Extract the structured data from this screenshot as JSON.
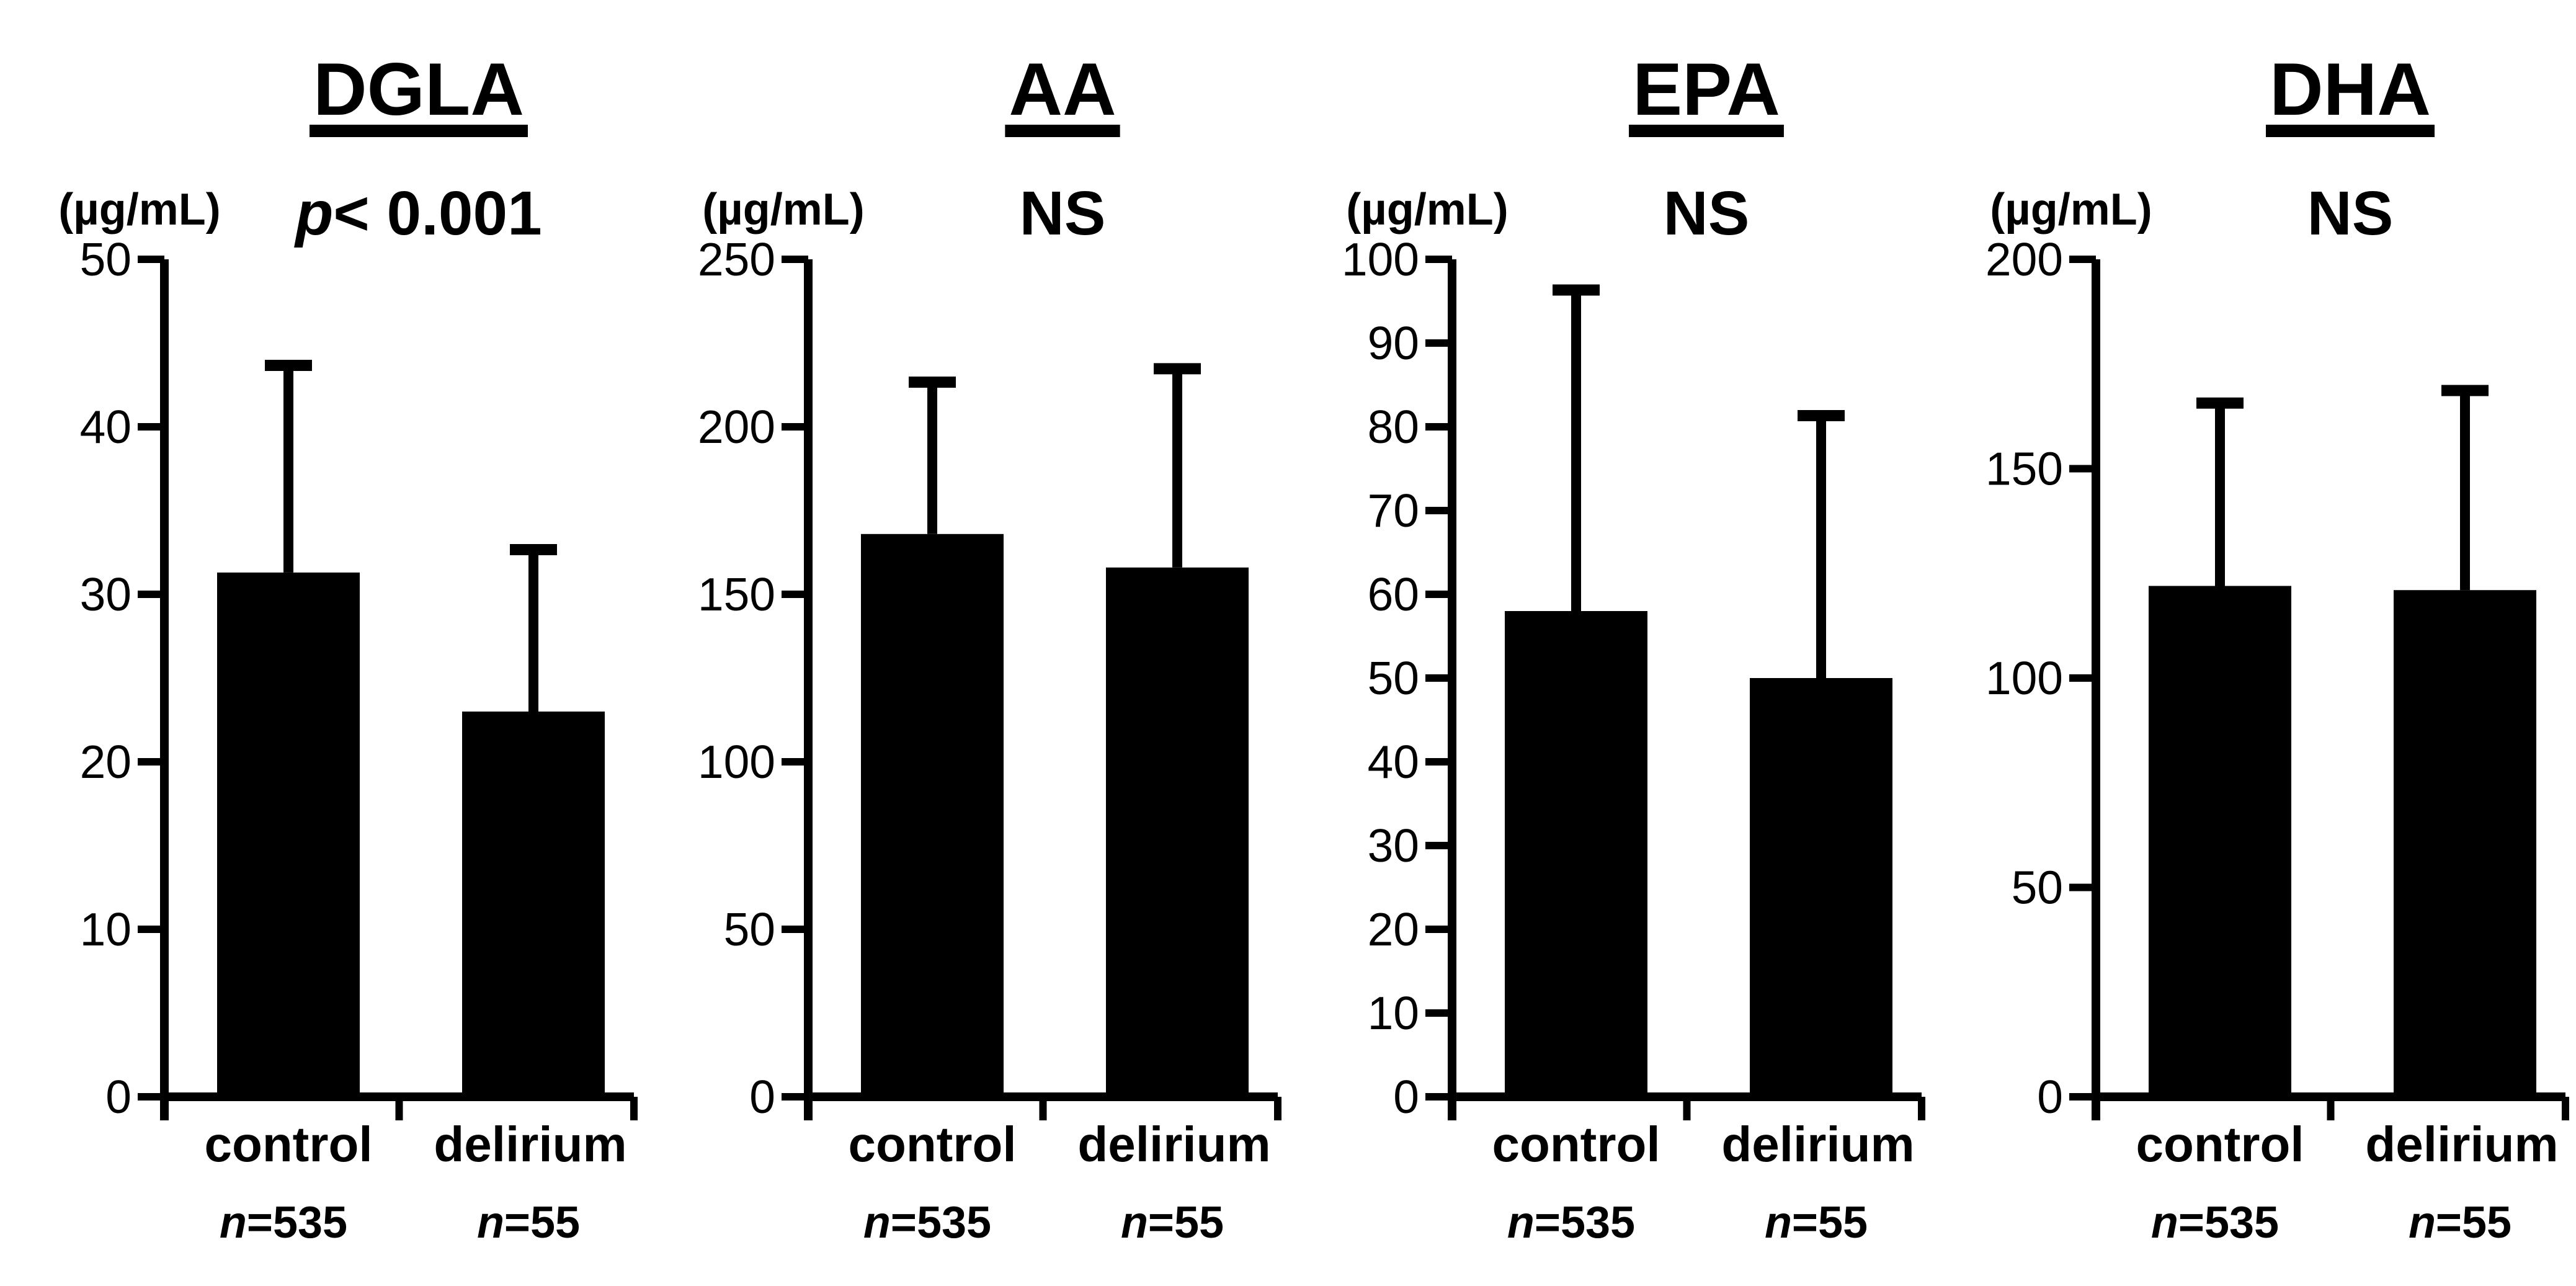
{
  "figure": {
    "background": "#ffffff",
    "ink": "#000000"
  },
  "chart_data": [
    {
      "type": "bar",
      "title": "DGLA",
      "unit_label": "(µg/mL)",
      "significance": {
        "italic": "p",
        "text": "< 0.001"
      },
      "ylim": [
        0,
        50
      ],
      "yticks": [
        0,
        10,
        20,
        30,
        40,
        50
      ],
      "categories": [
        "control",
        "delirium"
      ],
      "n_labels": [
        {
          "italic": "n",
          "text": "=535"
        },
        {
          "italic": "n",
          "text": "=55"
        }
      ],
      "values": [
        31.3,
        23
      ],
      "error_top": [
        44,
        33
      ],
      "bar_color": "#000000",
      "grid": false
    },
    {
      "type": "bar",
      "title": "AA",
      "unit_label": "(µg/mL)",
      "significance": {
        "italic": "",
        "text": "NS"
      },
      "ylim": [
        0,
        250
      ],
      "yticks": [
        0,
        50,
        100,
        150,
        200,
        250
      ],
      "categories": [
        "control",
        "delirium"
      ],
      "n_labels": [
        {
          "italic": "n",
          "text": "=535"
        },
        {
          "italic": "n",
          "text": "=55"
        }
      ],
      "values": [
        168,
        158
      ],
      "error_top": [
        215,
        219
      ],
      "bar_color": "#000000",
      "grid": false
    },
    {
      "type": "bar",
      "title": "EPA",
      "unit_label": "(µg/mL)",
      "significance": {
        "italic": "",
        "text": "NS"
      },
      "ylim": [
        0,
        100
      ],
      "yticks": [
        0,
        10,
        20,
        30,
        40,
        50,
        60,
        70,
        80,
        90,
        100
      ],
      "categories": [
        "control",
        "delirium"
      ],
      "n_labels": [
        {
          "italic": "n",
          "text": "=535"
        },
        {
          "italic": "n",
          "text": "=55"
        }
      ],
      "values": [
        58,
        50
      ],
      "error_top": [
        97,
        82
      ],
      "bar_color": "#000000",
      "grid": false
    },
    {
      "type": "bar",
      "title": "DHA",
      "unit_label": "(µg/mL)",
      "significance": {
        "italic": "",
        "text": "NS"
      },
      "ylim": [
        0,
        200
      ],
      "yticks": [
        0,
        50,
        100,
        150,
        200
      ],
      "categories": [
        "control",
        "delirium"
      ],
      "n_labels": [
        {
          "italic": "n",
          "text": "=535"
        },
        {
          "italic": "n",
          "text": "=55"
        }
      ],
      "values": [
        122,
        121
      ],
      "error_top": [
        167,
        170
      ],
      "bar_color": "#000000",
      "grid": false
    }
  ]
}
